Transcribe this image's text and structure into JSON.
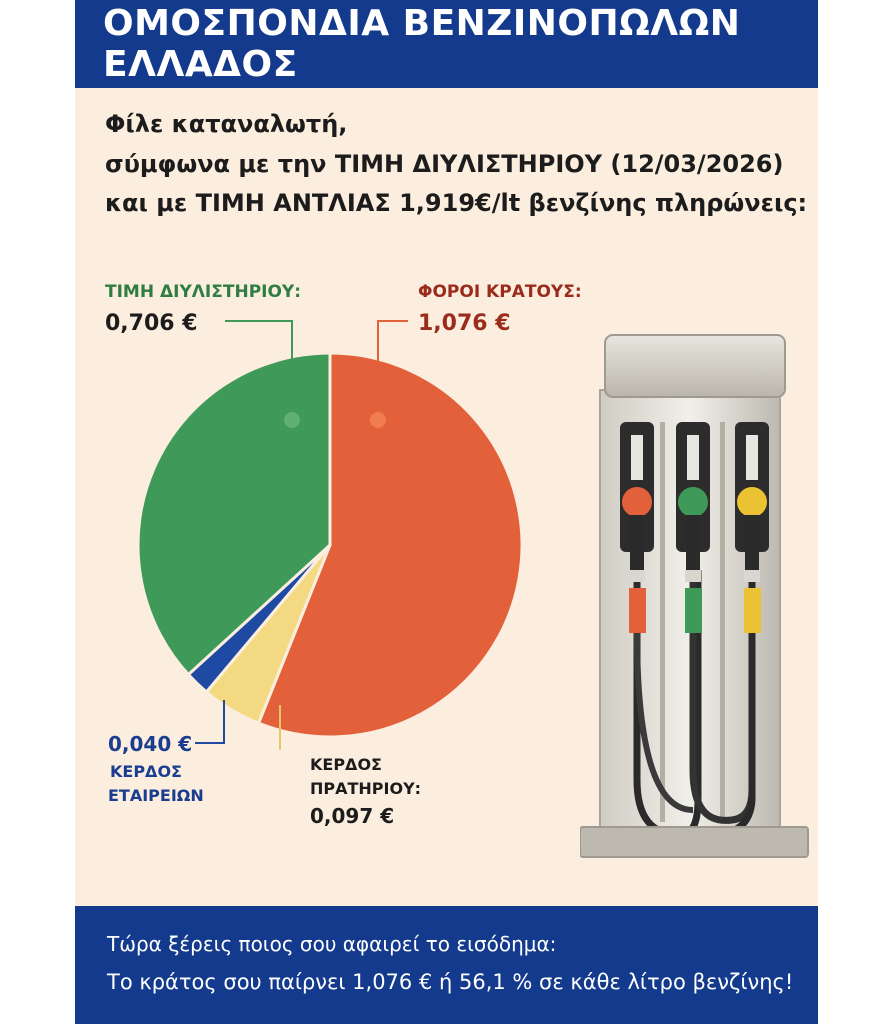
{
  "header": {
    "title": "ΟΜΟΣΠΟΝΔΙΑ ΒΕΝΖΙΝΟΠΩΛΩΝ ΕΛΛΑΔΟΣ"
  },
  "intro": {
    "line1": "Φίλε καταναλωτή,",
    "line2_prefix": "σύμφωνα με την ",
    "line2_bold": "ΤΙΜΗ ΔΙΥΛΙΣΤΗΡΙΟΥ (12/03/2026)",
    "line3_prefix": "και με ",
    "line3_bold": "ΤΙΜΗ ΑΝΤΛΙΑΣ 1,919€/lt",
    "line3_suffix": " βενζίνης πληρώνεις:"
  },
  "labels": {
    "refinery_title": "ΤΙΜΗ ΔΙΥΛΙΣΤΗΡΙΟΥ:",
    "refinery_value": "0,706 €",
    "taxes_title": "ΦΟΡΟΙ ΚΡΑΤΟΥΣ:",
    "taxes_value": "1,076 €",
    "companies_value": "0,040 €",
    "companies_title_1": "ΚΕΡΔΟΣ",
    "companies_title_2": "ΕΤΑΙΡΕΙΩΝ",
    "station_title_1": "ΚΕΡΔΟΣ",
    "station_title_2": "ΠΡΑΤΗΡΙΟΥ:",
    "station_value": "0,097 €"
  },
  "footer": {
    "line1": "Τώρα ξέρεις ποιος σου αφαιρεί το εισόδημα:",
    "line2": "Το κράτος σου παίρνει 1,076 € ή 56,1 % σε κάθε λίτρο βενζίνης!"
  },
  "colors": {
    "header_bg": "#133a8c",
    "background": "#fbeedf",
    "refinery": "#3f9a59",
    "taxes": "#e2613a",
    "station": "#f4d983",
    "companies": "#1f4aa3",
    "refinery_text": "#2f7d42",
    "taxes_text": "#9b2c1c",
    "companies_text": "#1b3d8f"
  },
  "icons": {
    "pump": "fuel-pump-illustration"
  },
  "chart_data": {
    "type": "pie",
    "title": "",
    "unit": "€",
    "slices": [
      {
        "name": "ΦΟΡΟΙ ΚΡΑΤΟΥΣ",
        "value": 1.076,
        "color": "#e2613a"
      },
      {
        "name": "ΚΕΡΔΟΣ ΠΡΑΤΗΡΙΟΥ",
        "value": 0.097,
        "color": "#f4d983"
      },
      {
        "name": "ΚΕΡΔΟΣ ΕΤΑΙΡΕΙΩΝ",
        "value": 0.04,
        "color": "#1f4aa3"
      },
      {
        "name": "ΤΙΜΗ ΔΙΥΛΙΣΤΗΡΙΟΥ",
        "value": 0.706,
        "color": "#3f9a59"
      }
    ],
    "start_angle_deg": 0,
    "direction": "clockwise"
  }
}
